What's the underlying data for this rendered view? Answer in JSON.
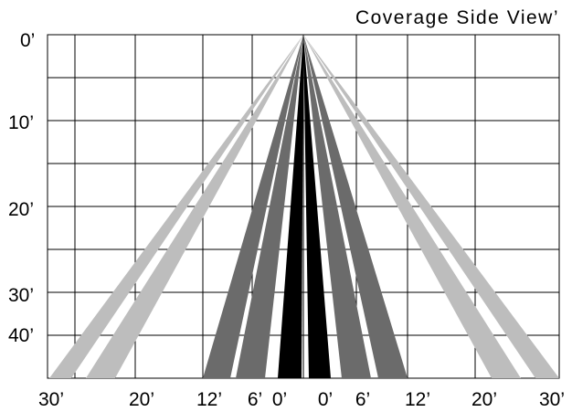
{
  "title": "Coverage Side View’",
  "y_labels": [
    "0’",
    "10’",
    "20’",
    "30’",
    "40’"
  ],
  "x_labels": [
    "30’",
    "20’",
    "12’",
    "6’",
    "0’",
    "0’",
    "6’",
    "12’",
    "20’",
    "30’"
  ],
  "colors": {
    "grid": "#000000",
    "outer_beam": "#bdbdbd",
    "middle_beam": "#6b6b6b",
    "inner_beam": "#000000"
  }
}
